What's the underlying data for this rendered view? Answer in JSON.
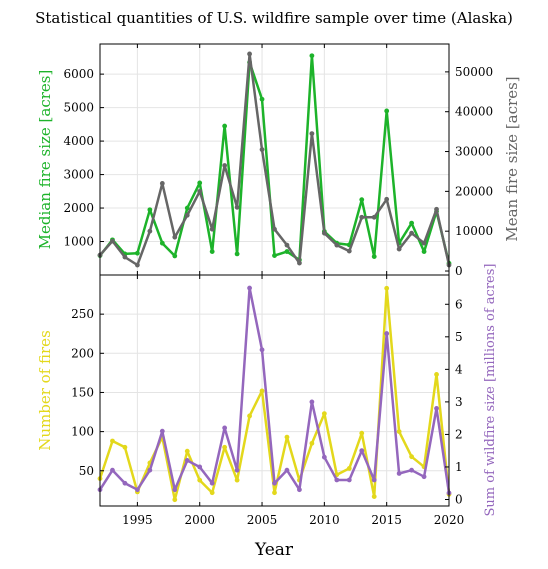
{
  "chart_data": {
    "title": "Statistical quantities of U.S. wildfire sample over time (Alaska)",
    "xlabel": "Year",
    "type": "line",
    "x": [
      1992,
      1993,
      1994,
      1995,
      1996,
      1997,
      1998,
      1999,
      2000,
      2001,
      2002,
      2003,
      2004,
      2005,
      2006,
      2007,
      2008,
      2009,
      2010,
      2011,
      2012,
      2013,
      2014,
      2015,
      2016,
      2017,
      2018,
      2019,
      2020
    ],
    "xlim": [
      1992,
      2020
    ],
    "xticks": [
      "1995",
      "2000",
      "2005",
      "2010",
      "2015",
      "2020"
    ],
    "panels": [
      {
        "left_axis": {
          "label": "Median fire size [acres]",
          "color": "#1db32a",
          "ylim": [
            0,
            6900
          ],
          "ticks": [
            "1000",
            "2000",
            "3000",
            "4000",
            "5000",
            "6000"
          ]
        },
        "right_axis": {
          "label": "Mean fire size [acres]",
          "color": "#666666",
          "ylim": [
            -1000,
            57000
          ],
          "ticks": [
            "0",
            "10000",
            "20000",
            "30000",
            "40000",
            "50000"
          ]
        },
        "series": [
          {
            "axis": "left",
            "color": "#1db32a",
            "values": [
              580,
              1050,
              630,
              650,
              1950,
              950,
              570,
              2000,
              2750,
              700,
              4450,
              630,
              6350,
              5250,
              580,
              700,
              450,
              6550,
              1300,
              950,
              900,
              2250,
              550,
              4900,
              950,
              1550,
              700,
              1900,
              350
            ]
          },
          {
            "axis": "right",
            "color": "#666666",
            "values": [
              4000,
              7500,
              3500,
              1500,
              10000,
              22000,
              8500,
              14000,
              20000,
              10500,
              26500,
              16000,
              54500,
              30500,
              10500,
              6500,
              2000,
              34500,
              9500,
              6500,
              5000,
              13500,
              13500,
              18000,
              5500,
              9500,
              7000,
              15500,
              1500
            ]
          }
        ]
      },
      {
        "left_axis": {
          "label": "Number of fires",
          "color": "#e3d81c",
          "ylim": [
            5,
            300
          ],
          "ticks": [
            "50",
            "100",
            "150",
            "200",
            "250"
          ]
        },
        "right_axis": {
          "label": "Sum of wildfire size [millions of acres]",
          "color": "#9467bd",
          "ylim": [
            -0.2,
            6.9
          ],
          "ticks": [
            "0",
            "1",
            "2",
            "3",
            "4",
            "5",
            "6"
          ]
        },
        "series": [
          {
            "axis": "left",
            "color": "#e3d81c",
            "values": [
              40,
              88,
              80,
              23,
              60,
              93,
              13,
              75,
              38,
              22,
              80,
              38,
              120,
              152,
              22,
              93,
              38,
              85,
              123,
              45,
              53,
              98,
              17,
              283,
              100,
              68,
              55,
              173,
              20
            ]
          },
          {
            "axis": "right",
            "color": "#9467bd",
            "values": [
              0.3,
              0.9,
              0.5,
              0.3,
              0.9,
              2.1,
              0.3,
              1.2,
              1.0,
              0.5,
              2.2,
              0.9,
              6.5,
              4.6,
              0.5,
              0.9,
              0.3,
              3.0,
              1.3,
              0.6,
              0.6,
              1.5,
              0.6,
              5.1,
              0.8,
              0.9,
              0.7,
              2.8,
              0.2
            ]
          }
        ]
      }
    ]
  }
}
